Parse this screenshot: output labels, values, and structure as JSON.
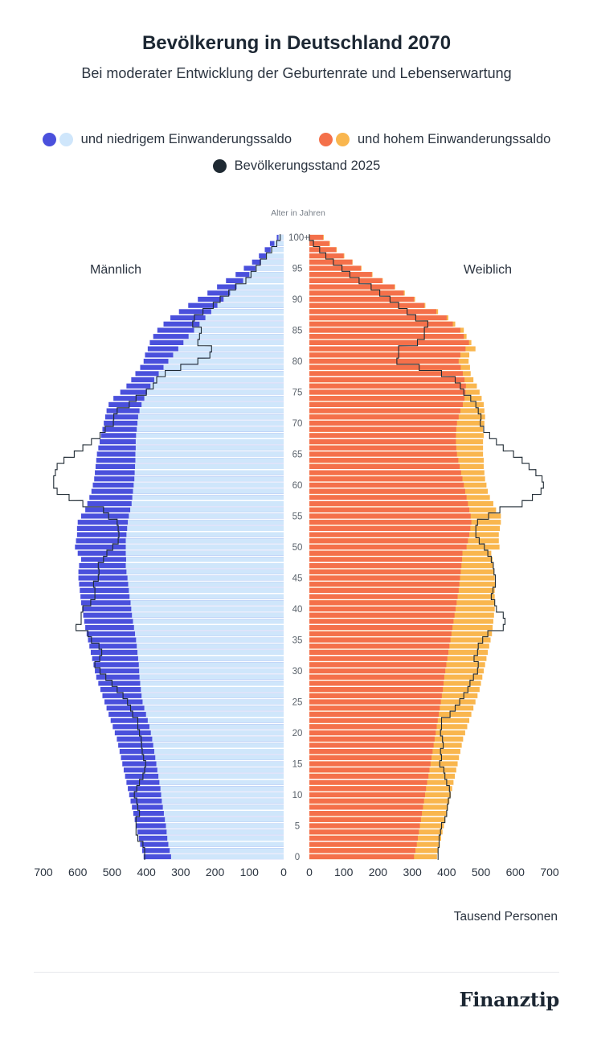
{
  "header": {
    "title": "Bevölkerung in Deutschland 2070",
    "subtitle": "Bei moderater Entwicklung der Geburtenrate und Lebenserwartung"
  },
  "legend": {
    "low": {
      "label": "und niedrigem Einwanderungssaldo",
      "colors": [
        "#4a50dc",
        "#cfe6fb"
      ]
    },
    "high": {
      "label": "und hohem Einwanderungssaldo",
      "colors": [
        "#f4704a",
        "#f9b64e"
      ]
    },
    "base": {
      "label": "Bevölkerungsstand 2025",
      "color": "#1f2a33"
    }
  },
  "brand": "Finanztip",
  "chart_data": {
    "type": "population-pyramid",
    "title": "Bevölkerung in Deutschland 2070",
    "subtitle": "Bei moderater Entwicklung der Geburtenrate und Lebenserwartung",
    "y_axis_label": "Alter in Jahren",
    "y_ticks": [
      "0",
      "5",
      "10",
      "15",
      "20",
      "25",
      "30",
      "35",
      "40",
      "45",
      "50",
      "55",
      "60",
      "65",
      "70",
      "75",
      "80",
      "85",
      "90",
      "95",
      "100+"
    ],
    "x_axis_label": "Tausend Personen",
    "x_ticks_left": [
      "700",
      "600",
      "500",
      "400",
      "300",
      "200",
      "100",
      "0"
    ],
    "x_ticks_right": [
      "0",
      "100",
      "200",
      "300",
      "400",
      "500",
      "600",
      "700"
    ],
    "xlim": [
      0,
      700
    ],
    "left_label": "Männlich",
    "right_label": "Weiblich",
    "ages": "0 to 100+ in 1-year steps (index = age)",
    "series": [
      {
        "name": "und niedrigem Einwanderungssaldo",
        "side": "Männlich",
        "values": [
          328,
          332,
          336,
          339,
          341,
          343,
          346,
          349,
          352,
          355,
          357,
          359,
          362,
          365,
          368,
          371,
          374,
          377,
          380,
          383,
          387,
          391,
          396,
          401,
          406,
          411,
          414,
          416,
          418,
          420,
          421,
          422,
          424,
          426,
          428,
          430,
          433,
          436,
          439,
          442,
          444,
          446,
          449,
          451,
          453,
          455,
          458,
          460,
          459,
          460,
          460,
          460,
          458,
          456,
          454,
          451,
          447,
          443,
          441,
          439,
          437,
          435,
          434,
          433,
          432,
          432,
          431,
          431,
          430,
          428,
          426,
          424,
          420,
          414,
          406,
          398,
          388,
          377,
          364,
          350,
          336,
          322,
          307,
          292,
          277,
          261,
          245,
          228,
          211,
          193,
          175,
          156,
          137,
          118,
          100,
          82,
          66,
          51,
          38,
          27,
          15
        ]
      },
      {
        "name": "und hohem Einwanderungssaldo",
        "side": "Männlich",
        "values": [
          408,
          412,
          418,
          422,
          426,
          430,
          434,
          438,
          442,
          446,
          450,
          454,
          458,
          462,
          466,
          470,
          474,
          478,
          482,
          486,
          492,
          498,
          504,
          510,
          516,
          522,
          528,
          534,
          540,
          546,
          550,
          554,
          558,
          562,
          566,
          570,
          574,
          578,
          581,
          584,
          587,
          590,
          592,
          594,
          596,
          598,
          598,
          596,
          590,
          600,
          608,
          605,
          602,
          602,
          600,
          590,
          578,
          572,
          566,
          560,
          556,
          552,
          550,
          548,
          546,
          544,
          540,
          536,
          532,
          528,
          524,
          520,
          516,
          510,
          496,
          476,
          458,
          444,
          432,
          418,
          408,
          404,
          396,
          390,
          380,
          368,
          350,
          330,
          305,
          278,
          250,
          222,
          194,
          168,
          140,
          116,
          92,
          72,
          55,
          40,
          20
        ]
      },
      {
        "name": "und niedrigem Einwanderungssaldo",
        "side": "Weiblich",
        "values": [
          305,
          309,
          313,
          316,
          319,
          322,
          325,
          328,
          331,
          334,
          337,
          340,
          343,
          347,
          350,
          353,
          356,
          359,
          362,
          365,
          368,
          371,
          374,
          377,
          380,
          383,
          386,
          389,
          391,
          393,
          396,
          399,
          402,
          405,
          408,
          411,
          414,
          417,
          420,
          423,
          426,
          429,
          432,
          435,
          437,
          439,
          441,
          443,
          445,
          446,
          458,
          462,
          466,
          469,
          472,
          470,
          466,
          462,
          458,
          454,
          450,
          446,
          442,
          438,
          434,
          430,
          428,
          427,
          427,
          428,
          430,
          435,
          440,
          447,
          452,
          455,
          456,
          452,
          447,
          441,
          435,
          440,
          455,
          465,
          450,
          440,
          418,
          400,
          370,
          335,
          305,
          275,
          248,
          212,
          182,
          150,
          125,
          100,
          78,
          58,
          40
        ]
      },
      {
        "name": "und hohem Einwanderungssaldo",
        "side": "Weiblich",
        "values": [
          372,
          376,
          380,
          384,
          388,
          392,
          396,
          400,
          404,
          408,
          412,
          416,
          420,
          424,
          428,
          432,
          436,
          440,
          444,
          448,
          454,
          460,
          466,
          472,
          478,
          484,
          490,
          496,
          500,
          504,
          508,
          512,
          516,
          520,
          524,
          528,
          532,
          534,
          536,
          538,
          540,
          540,
          540,
          540,
          542,
          540,
          538,
          536,
          534,
          530,
          554,
          552,
          552,
          555,
          558,
          558,
          544,
          536,
          526,
          520,
          516,
          512,
          510,
          508,
          508,
          506,
          506,
          506,
          508,
          506,
          510,
          512,
          510,
          508,
          502,
          496,
          488,
          478,
          470,
          468,
          464,
          466,
          484,
          472,
          458,
          450,
          425,
          405,
          375,
          338,
          308,
          278,
          250,
          214,
          184,
          152,
          126,
          102,
          80,
          60,
          42
        ]
      }
    ],
    "reference": {
      "name": "Bevölkerungsstand 2025",
      "Männlich": [
        405,
        405,
        410,
        425,
        430,
        430,
        430,
        420,
        425,
        428,
        435,
        428,
        420,
        410,
        405,
        402,
        408,
        412,
        414,
        415,
        420,
        425,
        425,
        440,
        446,
        455,
        468,
        485,
        500,
        518,
        535,
        550,
        536,
        530,
        538,
        560,
        570,
        605,
        590,
        590,
        585,
        562,
        550,
        550,
        554,
        540,
        538,
        540,
        525,
        515,
        498,
        482,
        480,
        482,
        485,
        510,
        525,
        585,
        625,
        660,
        670,
        670,
        665,
        660,
        640,
        610,
        585,
        560,
        535,
        520,
        496,
        495,
        485,
        450,
        430,
        400,
        380,
        370,
        345,
        300,
        250,
        215,
        210,
        250,
        245,
        240,
        265,
        260,
        235,
        205,
        185,
        160,
        140,
        110,
        95,
        80,
        68,
        50,
        35,
        20,
        10
      ],
      "Weiblich": [
        375,
        375,
        378,
        378,
        382,
        385,
        395,
        400,
        402,
        405,
        410,
        408,
        400,
        395,
        392,
        380,
        385,
        382,
        390,
        388,
        382,
        385,
        385,
        410,
        425,
        438,
        450,
        462,
        468,
        478,
        490,
        492,
        480,
        490,
        492,
        505,
        520,
        565,
        570,
        565,
        545,
        540,
        530,
        535,
        542,
        542,
        538,
        536,
        530,
        520,
        510,
        495,
        485,
        485,
        490,
        522,
        555,
        620,
        650,
        675,
        682,
        678,
        660,
        640,
        620,
        595,
        565,
        545,
        525,
        508,
        498,
        500,
        492,
        485,
        470,
        450,
        440,
        425,
        385,
        320,
        255,
        260,
        260,
        315,
        335,
        335,
        345,
        310,
        285,
        260,
        235,
        205,
        180,
        145,
        118,
        95,
        70,
        48,
        30,
        12,
        0
      ]
    }
  }
}
